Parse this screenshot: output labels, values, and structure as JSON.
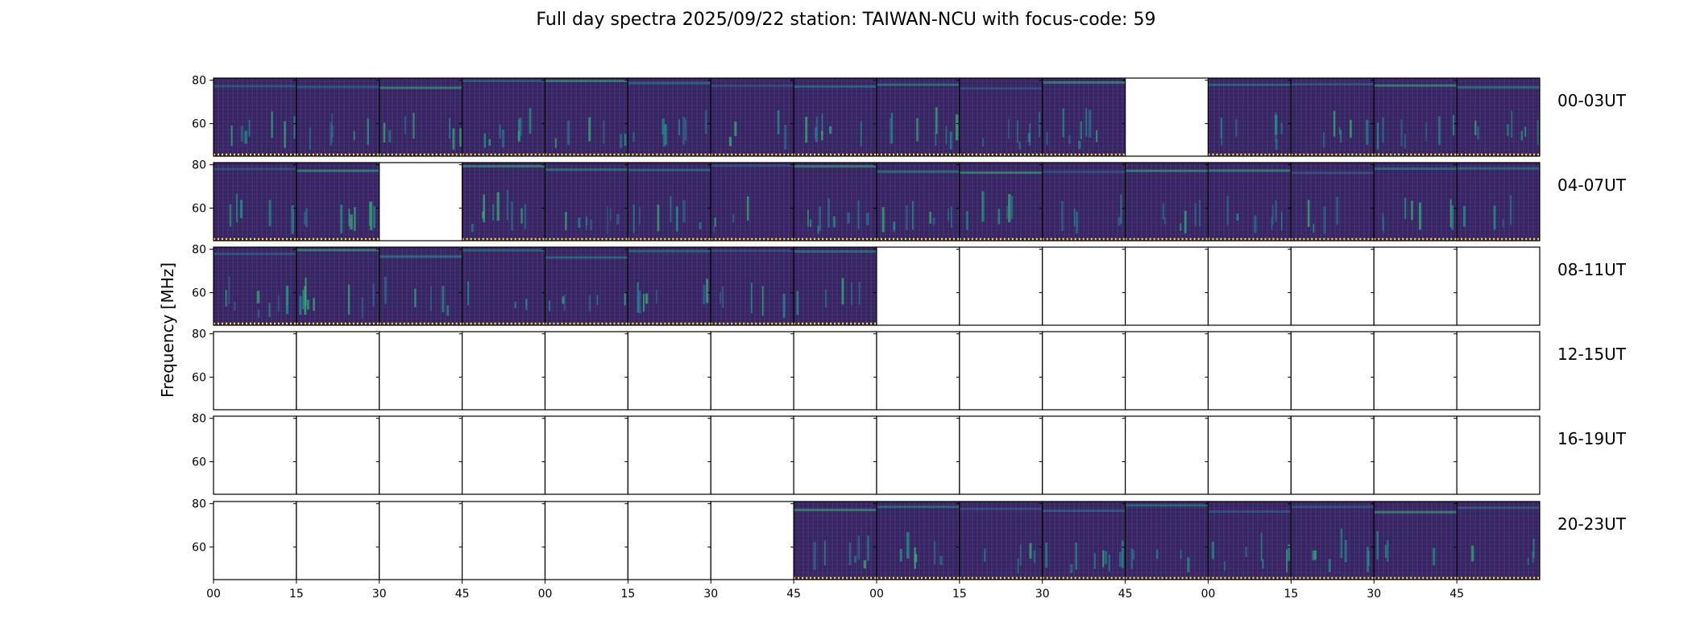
{
  "chart_data": {
    "type": "heatmap",
    "title": "Full day spectra 2025/09/22 station: TAIWAN-NCU with focus-code: 59",
    "ylabel": "Frequency [MHz]",
    "xlabel": "",
    "ylim": [
      45,
      81
    ],
    "y_ticks": [
      "80",
      "60"
    ],
    "x_tick_labels": [
      "00",
      "15",
      "30",
      "45",
      "00",
      "15",
      "30",
      "45",
      "00",
      "15",
      "30",
      "45",
      "00",
      "15",
      "30",
      "45"
    ],
    "colormap": "viridis",
    "rows": [
      {
        "label": "00-03UT",
        "panels": [
          "data",
          "data",
          "data",
          "data",
          "data",
          "data",
          "data",
          "data",
          "data",
          "data",
          "data",
          "empty",
          "data",
          "data",
          "data",
          "data"
        ]
      },
      {
        "label": "04-07UT",
        "panels": [
          "data",
          "data",
          "empty",
          "data",
          "data",
          "data",
          "data",
          "data",
          "data",
          "data",
          "data",
          "data",
          "data",
          "data",
          "data",
          "data"
        ]
      },
      {
        "label": "08-11UT",
        "panels": [
          "data",
          "data",
          "data",
          "data",
          "data",
          "data",
          "data",
          "data",
          "blank",
          "blank",
          "blank",
          "blank",
          "blank",
          "blank",
          "blank",
          "blank"
        ]
      },
      {
        "label": "12-15UT",
        "panels": [
          "blank",
          "blank",
          "blank",
          "blank",
          "blank",
          "blank",
          "blank",
          "blank",
          "blank",
          "blank",
          "blank",
          "blank",
          "blank",
          "blank",
          "blank",
          "blank"
        ]
      },
      {
        "label": "16-19UT",
        "panels": [
          "blank",
          "blank",
          "blank",
          "blank",
          "blank",
          "blank",
          "blank",
          "blank",
          "blank",
          "blank",
          "blank",
          "blank",
          "blank",
          "blank",
          "blank",
          "blank"
        ]
      },
      {
        "label": "20-23UT",
        "panels": [
          "blank",
          "blank",
          "blank",
          "blank",
          "blank",
          "blank",
          "blank",
          "data",
          "data",
          "data",
          "data",
          "data",
          "data",
          "data",
          "data",
          "data"
        ]
      }
    ]
  }
}
